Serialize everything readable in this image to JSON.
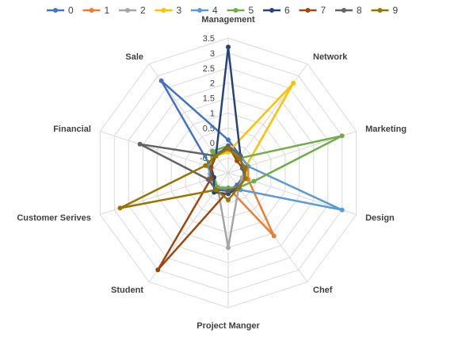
{
  "chart_data": {
    "type": "radar",
    "title": "",
    "axes": [
      "Management",
      "Network",
      "Marketing",
      "Design",
      "Chef",
      "Project Manger",
      "Student",
      "Customer Serives",
      "Financial",
      "Sale"
    ],
    "rlim": [
      -1,
      3.5
    ],
    "ticks": [
      "-1",
      "-0.5",
      "0",
      "0.5",
      "1",
      "1.5",
      "2",
      "2.5",
      "3",
      "3.5"
    ],
    "tick_values": [
      -1,
      -0.5,
      0,
      0.5,
      1,
      1.5,
      2,
      2.5,
      3,
      3.5
    ],
    "grid": true,
    "legend_position": "top",
    "series": [
      {
        "name": "0",
        "color": "#4472C4",
        "values": [
          0.1,
          -0.3,
          -0.3,
          -0.5,
          -0.5,
          -0.4,
          -0.4,
          -0.3,
          -0.4,
          2.8
        ]
      },
      {
        "name": "1",
        "color": "#ED7D31",
        "values": [
          -0.1,
          -0.3,
          -0.3,
          -0.3,
          1.6,
          -0.5,
          -0.4,
          -0.4,
          -0.3,
          -0.3
        ]
      },
      {
        "name": "2",
        "color": "#A5A5A5",
        "values": [
          -0.2,
          -0.4,
          -0.4,
          -0.5,
          -0.4,
          1.5,
          -0.4,
          -0.3,
          -0.4,
          -0.3
        ]
      },
      {
        "name": "3",
        "color": "#FFC000",
        "values": [
          -0.3,
          2.7,
          -0.4,
          -0.4,
          -0.4,
          -0.4,
          -0.4,
          -0.4,
          -0.4,
          -0.3
        ]
      },
      {
        "name": "4",
        "color": "#5B9BD5",
        "values": [
          -0.2,
          -0.3,
          -0.3,
          3.0,
          -0.3,
          -0.4,
          -0.4,
          -0.4,
          -0.3,
          -0.2
        ]
      },
      {
        "name": "5",
        "color": "#70AD47",
        "values": [
          -0.1,
          -0.4,
          3.0,
          -0.1,
          -0.4,
          -0.5,
          -0.4,
          -0.5,
          -0.4,
          -0.1
        ]
      },
      {
        "name": "6",
        "color": "#264478",
        "values": [
          3.2,
          -0.3,
          -0.5,
          -0.4,
          -0.4,
          -0.3,
          -0.2,
          -0.5,
          -0.4,
          -0.3
        ]
      },
      {
        "name": "7",
        "color": "#9E480E",
        "values": [
          -0.1,
          -0.5,
          -0.5,
          -0.4,
          -0.4,
          -0.4,
          3.0,
          -0.4,
          -0.4,
          -0.3
        ]
      },
      {
        "name": "8",
        "color": "#636363",
        "values": [
          -0.1,
          -0.3,
          -0.5,
          -0.4,
          -0.4,
          -0.4,
          -0.3,
          -0.3,
          2.1,
          -0.3
        ]
      },
      {
        "name": "9",
        "color": "#997300",
        "values": [
          -0.2,
          -0.4,
          -0.4,
          -0.4,
          -0.4,
          -0.1,
          -0.3,
          2.8,
          -0.2,
          -0.3
        ]
      }
    ]
  }
}
